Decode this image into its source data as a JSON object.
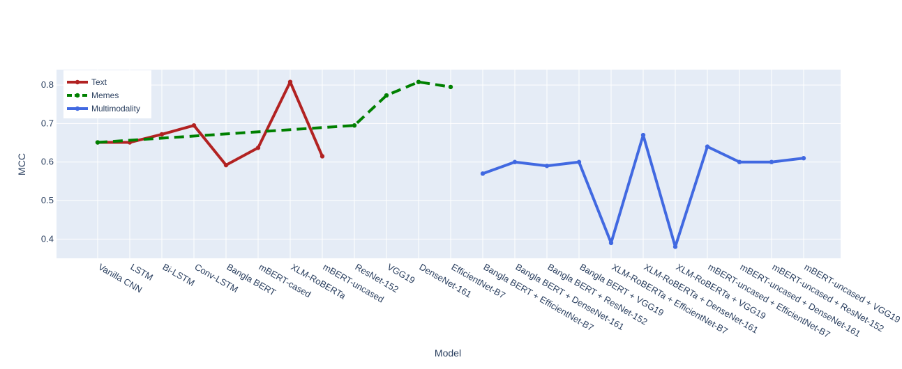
{
  "chart_data": {
    "type": "line",
    "xlabel": "Model",
    "ylabel": "MCC",
    "categories": [
      "Vanilla CNN",
      "LSTM",
      "Bi-LSTM",
      "Conv-LSTM",
      "Bangla BERT",
      "mBERT-cased",
      "XLM-RoBERTa",
      "mBERT-uncased",
      "ResNet-152",
      "VGG19",
      "DenseNet-161",
      "EfficientNet-B7",
      "Bangla BERT + EfficientNet-B7",
      "Bangla BERT + DenseNet-161",
      "Bangla BERT + ResNet-152",
      "Bangla BERT + VGG19",
      "XLM-RoBERTa + EfficientNet-B7",
      "XLM-RoBERTa + DenseNet-161",
      "XLM-RoBERTa + VGG19",
      "mBERT-uncased + EfficientNet-B7",
      "mBERT-uncased + DenseNet-161",
      "mBERT-uncased + ResNet-152",
      "mBERT-uncased + VGG19"
    ],
    "yticks": [
      "0.4",
      "0.5",
      "0.6",
      "0.7",
      "0.8"
    ],
    "ylim": [
      0.35,
      0.84
    ],
    "grid": true,
    "legend_position": "top-left",
    "series": [
      {
        "name": "Text",
        "color": "#b22222",
        "dash": "solid",
        "points": [
          {
            "x": "Vanilla CNN",
            "y": 0.651
          },
          {
            "x": "LSTM",
            "y": 0.651
          },
          {
            "x": "Bi-LSTM",
            "y": 0.672
          },
          {
            "x": "Conv-LSTM",
            "y": 0.695
          },
          {
            "x": "Bangla BERT",
            "y": 0.592
          },
          {
            "x": "mBERT-cased",
            "y": 0.637
          },
          {
            "x": "XLM-RoBERTa",
            "y": 0.808
          },
          {
            "x": "mBERT-uncased",
            "y": 0.615
          }
        ]
      },
      {
        "name": "Memes",
        "color": "#008000",
        "dash": "dash",
        "points": [
          {
            "x": "Vanilla CNN",
            "y": 0.651
          },
          {
            "x": "ResNet-152",
            "y": 0.695
          },
          {
            "x": "VGG19",
            "y": 0.773
          },
          {
            "x": "DenseNet-161",
            "y": 0.808
          },
          {
            "x": "EfficientNet-B7",
            "y": 0.795
          }
        ]
      },
      {
        "name": "Multimodality",
        "color": "#4169e1",
        "dash": "solid",
        "points": [
          {
            "x": "Bangla BERT + EfficientNet-B7",
            "y": 0.57
          },
          {
            "x": "Bangla BERT + DenseNet-161",
            "y": 0.6
          },
          {
            "x": "Bangla BERT + ResNet-152",
            "y": 0.59
          },
          {
            "x": "Bangla BERT + VGG19",
            "y": 0.6
          },
          {
            "x": "XLM-RoBERTa + EfficientNet-B7",
            "y": 0.39
          },
          {
            "x": "XLM-RoBERTa + DenseNet-161",
            "y": 0.67
          },
          {
            "x": "XLM-RoBERTa + VGG19",
            "y": 0.38
          },
          {
            "x": "mBERT-uncased + EfficientNet-B7",
            "y": 0.64
          },
          {
            "x": "mBERT-uncased + DenseNet-161",
            "y": 0.6
          },
          {
            "x": "mBERT-uncased + ResNet-152",
            "y": 0.6
          },
          {
            "x": "mBERT-uncased + VGG19",
            "y": 0.61
          }
        ]
      }
    ]
  }
}
